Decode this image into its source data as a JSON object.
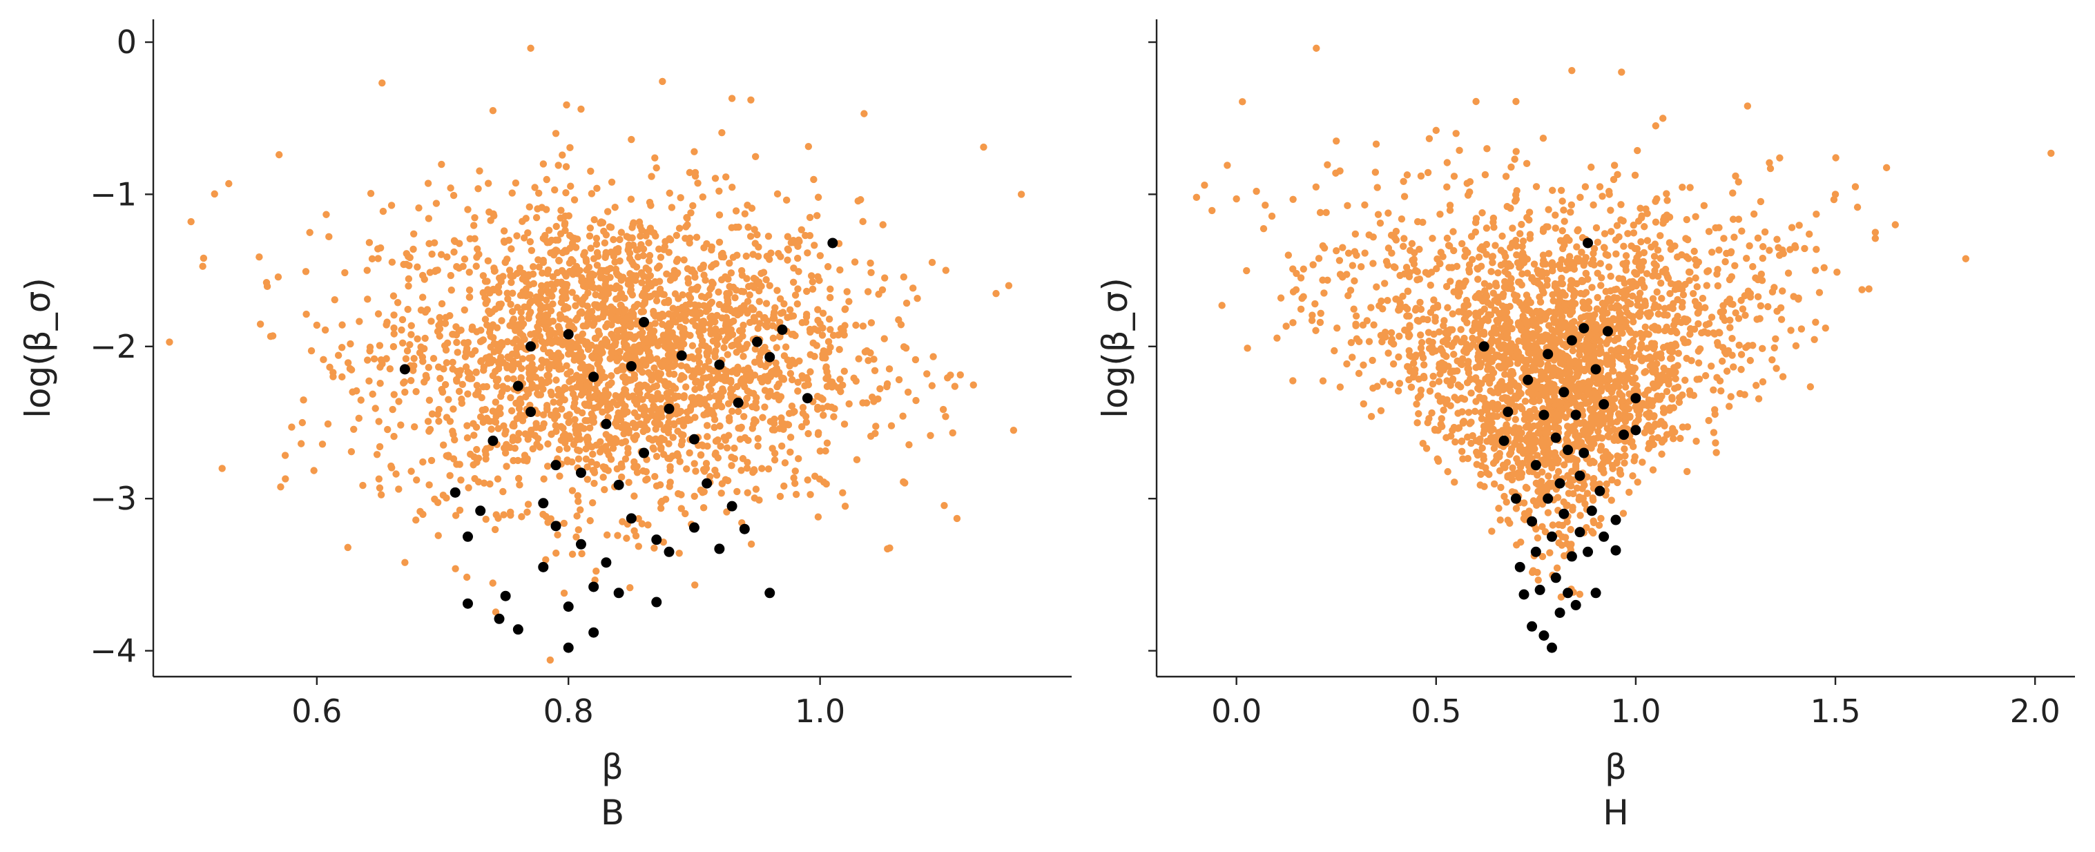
{
  "colors": {
    "orange": "#f4994a",
    "black": "#000000",
    "axis": "#222222"
  },
  "chart_data": [
    {
      "type": "scatter",
      "xlabel": "β\nB",
      "ylabel": "log(β_σ)",
      "xlim": [
        0.47,
        1.2
      ],
      "ylim": [
        -4.17,
        0.15
      ],
      "xticks": [
        0.6,
        0.8,
        1.0
      ],
      "xtick_labels": [
        "0.6",
        "0.8",
        "1.0"
      ],
      "yticks": [
        0,
        -1,
        -2,
        -3,
        -4
      ],
      "ytick_labels": [
        "0",
        "−1",
        "−2",
        "−3",
        "−4"
      ],
      "grid": false,
      "series": [
        {
          "color": "#f4994a",
          "marker_size": "small",
          "points": [
            [
              0.5,
              -1.18
            ],
            [
              0.51,
              -1.42
            ],
            [
              0.53,
              -0.93
            ],
            [
              0.56,
              -1.58
            ],
            [
              0.57,
              -0.74
            ],
            [
              0.575,
              -2.87
            ],
            [
              0.58,
              -2.53
            ],
            [
              0.6,
              -1.86
            ],
            [
              0.62,
              -2.2
            ],
            [
              0.64,
              -1.5
            ],
            [
              0.65,
              -2.93
            ],
            [
              0.67,
              -3.42
            ],
            [
              0.68,
              -1.95
            ],
            [
              0.7,
              -2.3
            ],
            [
              0.72,
              -1.1
            ],
            [
              0.74,
              -0.45
            ],
            [
              0.75,
              -2.7
            ],
            [
              0.77,
              -0.04
            ],
            [
              0.79,
              -0.6
            ],
            [
              0.8,
              -2.05
            ],
            [
              0.81,
              -0.44
            ],
            [
              0.83,
              -1.65
            ],
            [
              0.85,
              -0.64
            ],
            [
              0.86,
              -2.45
            ],
            [
              0.88,
              -1.85
            ],
            [
              0.9,
              -0.72
            ],
            [
              0.92,
              -2.2
            ],
            [
              0.93,
              -0.37
            ],
            [
              0.945,
              -0.38
            ],
            [
              0.96,
              -1.6
            ],
            [
              0.98,
              -2.9
            ],
            [
              1.0,
              -1.85
            ],
            [
              1.02,
              -3.05
            ],
            [
              1.035,
              -0.47
            ],
            [
              1.05,
              -1.2
            ],
            [
              1.07,
              -2.3
            ],
            [
              1.1,
              -1.5
            ],
            [
              1.13,
              -0.69
            ],
            [
              1.15,
              -1.6
            ],
            [
              1.16,
              -1.0
            ]
          ]
        },
        {
          "color": "#000000",
          "marker_size": "large",
          "points": [
            [
              0.67,
              -2.15
            ],
            [
              0.71,
              -2.96
            ],
            [
              0.72,
              -3.25
            ],
            [
              0.72,
              -3.69
            ],
            [
              0.73,
              -3.08
            ],
            [
              0.74,
              -2.62
            ],
            [
              0.745,
              -3.79
            ],
            [
              0.75,
              -3.64
            ],
            [
              0.76,
              -3.86
            ],
            [
              0.76,
              -2.26
            ],
            [
              0.77,
              -2.0
            ],
            [
              0.77,
              -2.43
            ],
            [
              0.78,
              -3.03
            ],
            [
              0.78,
              -3.45
            ],
            [
              0.79,
              -3.18
            ],
            [
              0.79,
              -2.78
            ],
            [
              0.8,
              -3.98
            ],
            [
              0.8,
              -3.71
            ],
            [
              0.8,
              -1.92
            ],
            [
              0.81,
              -3.3
            ],
            [
              0.81,
              -2.83
            ],
            [
              0.82,
              -2.2
            ],
            [
              0.82,
              -3.58
            ],
            [
              0.82,
              -3.88
            ],
            [
              0.83,
              -2.51
            ],
            [
              0.83,
              -3.42
            ],
            [
              0.84,
              -2.91
            ],
            [
              0.84,
              -3.62
            ],
            [
              0.85,
              -2.13
            ],
            [
              0.85,
              -3.13
            ],
            [
              0.86,
              -1.84
            ],
            [
              0.86,
              -2.7
            ],
            [
              0.87,
              -3.27
            ],
            [
              0.87,
              -3.68
            ],
            [
              0.88,
              -2.41
            ],
            [
              0.88,
              -3.35
            ],
            [
              0.89,
              -2.06
            ],
            [
              0.9,
              -2.61
            ],
            [
              0.9,
              -3.19
            ],
            [
              0.91,
              -2.9
            ],
            [
              0.92,
              -3.33
            ],
            [
              0.92,
              -2.12
            ],
            [
              0.93,
              -3.05
            ],
            [
              0.935,
              -2.37
            ],
            [
              0.94,
              -3.2
            ],
            [
              0.95,
              -1.97
            ],
            [
              0.96,
              -3.62
            ],
            [
              0.96,
              -2.07
            ],
            [
              0.97,
              -1.89
            ],
            [
              0.99,
              -2.34
            ],
            [
              1.01,
              -1.32
            ]
          ]
        }
      ]
    },
    {
      "type": "scatter",
      "xlabel": "β\nH",
      "ylabel": "log(β_σ)",
      "xlim": [
        -0.2,
        2.1
      ],
      "ylim": [
        -4.17,
        0.15
      ],
      "xticks": [
        0.0,
        0.5,
        1.0,
        1.5,
        2.0
      ],
      "xtick_labels": [
        "0.0",
        "0.5",
        "1.0",
        "1.5",
        "2.0"
      ],
      "yticks": [
        0,
        -1,
        -2,
        -3,
        -4
      ],
      "ytick_labels": [
        "",
        "",
        "",
        "",
        ""
      ],
      "grid": false,
      "series": [
        {
          "color": "#f4994a",
          "marker_size": "small",
          "points": [
            [
              -0.08,
              -0.94
            ],
            [
              -0.1,
              -1.02
            ],
            [
              0.0,
              -1.03
            ],
            [
              0.05,
              -0.98
            ],
            [
              0.13,
              -1.4
            ],
            [
              0.15,
              -1.52
            ],
            [
              0.2,
              -0.04
            ],
            [
              0.21,
              -1.12
            ],
            [
              0.25,
              -0.65
            ],
            [
              0.3,
              -1.8
            ],
            [
              0.35,
              -0.67
            ],
            [
              0.4,
              -1.3
            ],
            [
              0.45,
              -1.75
            ],
            [
              0.5,
              -0.58
            ],
            [
              0.55,
              -0.6
            ],
            [
              0.6,
              -0.39
            ],
            [
              0.63,
              -2.2
            ],
            [
              0.65,
              -2.75
            ],
            [
              0.7,
              -0.39
            ],
            [
              0.72,
              -1.45
            ],
            [
              0.75,
              -3.2
            ],
            [
              0.8,
              -1.9
            ],
            [
              0.85,
              -2.8
            ],
            [
              0.9,
              -2.1
            ],
            [
              0.95,
              -1.3
            ],
            [
              1.0,
              -2.5
            ],
            [
              1.05,
              -0.55
            ],
            [
              1.1,
              -1.9
            ],
            [
              1.15,
              -1.55
            ],
            [
              1.2,
              -1.22
            ],
            [
              1.25,
              -0.88
            ],
            [
              1.28,
              -0.42
            ],
            [
              1.3,
              -1.55
            ],
            [
              1.35,
              -1.95
            ],
            [
              1.4,
              -1.35
            ],
            [
              1.45,
              -1.5
            ],
            [
              1.5,
              -1.0
            ],
            [
              1.55,
              -0.95
            ],
            [
              1.6,
              -1.25
            ],
            [
              1.65,
              -1.2
            ],
            [
              2.04,
              -0.73
            ]
          ]
        },
        {
          "color": "#000000",
          "marker_size": "large",
          "points": [
            [
              0.62,
              -2.0
            ],
            [
              0.67,
              -2.62
            ],
            [
              0.68,
              -2.43
            ],
            [
              0.7,
              -3.0
            ],
            [
              0.71,
              -3.45
            ],
            [
              0.72,
              -3.63
            ],
            [
              0.73,
              -2.22
            ],
            [
              0.74,
              -3.15
            ],
            [
              0.74,
              -3.84
            ],
            [
              0.75,
              -2.78
            ],
            [
              0.75,
              -3.35
            ],
            [
              0.76,
              -3.6
            ],
            [
              0.77,
              -3.9
            ],
            [
              0.77,
              -2.45
            ],
            [
              0.78,
              -2.05
            ],
            [
              0.78,
              -3.0
            ],
            [
              0.79,
              -3.98
            ],
            [
              0.79,
              -3.25
            ],
            [
              0.8,
              -2.6
            ],
            [
              0.8,
              -3.52
            ],
            [
              0.81,
              -3.75
            ],
            [
              0.81,
              -2.9
            ],
            [
              0.82,
              -2.3
            ],
            [
              0.82,
              -3.1
            ],
            [
              0.83,
              -3.62
            ],
            [
              0.83,
              -2.68
            ],
            [
              0.84,
              -1.96
            ],
            [
              0.84,
              -3.38
            ],
            [
              0.85,
              -2.45
            ],
            [
              0.85,
              -3.7
            ],
            [
              0.86,
              -2.85
            ],
            [
              0.86,
              -3.22
            ],
            [
              0.87,
              -1.88
            ],
            [
              0.87,
              -2.7
            ],
            [
              0.88,
              -3.35
            ],
            [
              0.88,
              -1.32
            ],
            [
              0.89,
              -3.08
            ],
            [
              0.9,
              -2.15
            ],
            [
              0.9,
              -3.62
            ],
            [
              0.91,
              -2.95
            ],
            [
              0.92,
              -2.38
            ],
            [
              0.92,
              -3.25
            ],
            [
              0.93,
              -1.9
            ],
            [
              0.95,
              -3.14
            ],
            [
              0.95,
              -3.34
            ],
            [
              0.97,
              -2.58
            ],
            [
              1.0,
              -2.34
            ],
            [
              1.0,
              -2.55
            ]
          ]
        }
      ]
    }
  ]
}
